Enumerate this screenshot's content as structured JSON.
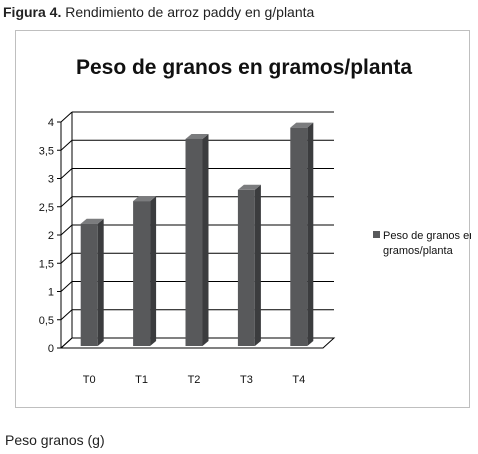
{
  "caption": {
    "figure_label": "Figura 4.",
    "text": "Rendimiento de arroz paddy en g/planta"
  },
  "footer_text": "Peso granos (g)",
  "colors": {
    "bar_front": "#58595b",
    "bar_side": "#3b3c3e",
    "bar_top": "#7b7c7e",
    "grid": "#000000",
    "text": "#111111"
  },
  "chart_data": {
    "type": "bar",
    "title": "Peso de granos en gramos/planta",
    "xlabel": "",
    "ylabel": "",
    "categories": [
      "T0",
      "T1",
      "T2",
      "T3",
      "T4"
    ],
    "series": [
      {
        "name": "Peso de granos en gramos/planta",
        "values": [
          2.2,
          2.6,
          3.7,
          2.8,
          3.9
        ]
      }
    ],
    "ylim": [
      0,
      4
    ],
    "yticks": [
      "0",
      "0,5",
      "1",
      "1,5",
      "2",
      "2,5",
      "3",
      "3,5",
      "4"
    ],
    "grid": true,
    "legend_position": "right",
    "three_d": true
  }
}
